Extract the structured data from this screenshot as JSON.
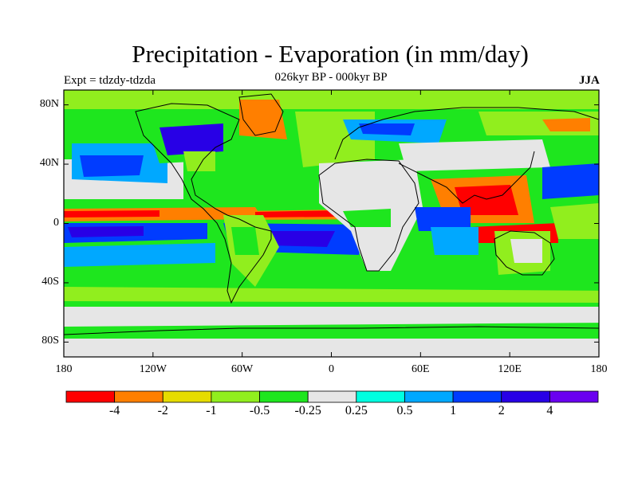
{
  "title": "Precipitation - Evaporation (in mm/day)",
  "subtitle": "026kyr BP - 000kyr BP",
  "experiment": "Expt = tdzdy-tdzda",
  "season": "JJA",
  "axes": {
    "lat_ticks": [
      "80N",
      "40N",
      "0",
      "40S",
      "80S"
    ],
    "lat_values": [
      80,
      40,
      0,
      -40,
      -80
    ],
    "lon_ticks": [
      "180",
      "120W",
      "60W",
      "0",
      "60E",
      "120E",
      "180"
    ],
    "lon_values": [
      -180,
      -120,
      -60,
      0,
      60,
      120,
      180
    ],
    "lon_range": [
      -180,
      180
    ],
    "lat_range": [
      -90,
      90
    ]
  },
  "colorbar": {
    "labels": [
      "-4",
      "-2",
      "-1",
      "-0.5",
      "-0.25",
      "0.25",
      "0.5",
      "1",
      "2",
      "4"
    ],
    "colors": [
      "#ff0000",
      "#ff7f00",
      "#e6dc00",
      "#91ee1e",
      "#1ee61e",
      "#e6e6e6",
      "#00ffe0",
      "#00a8ff",
      "#003cff",
      "#2800e6",
      "#6a00f0"
    ]
  }
}
